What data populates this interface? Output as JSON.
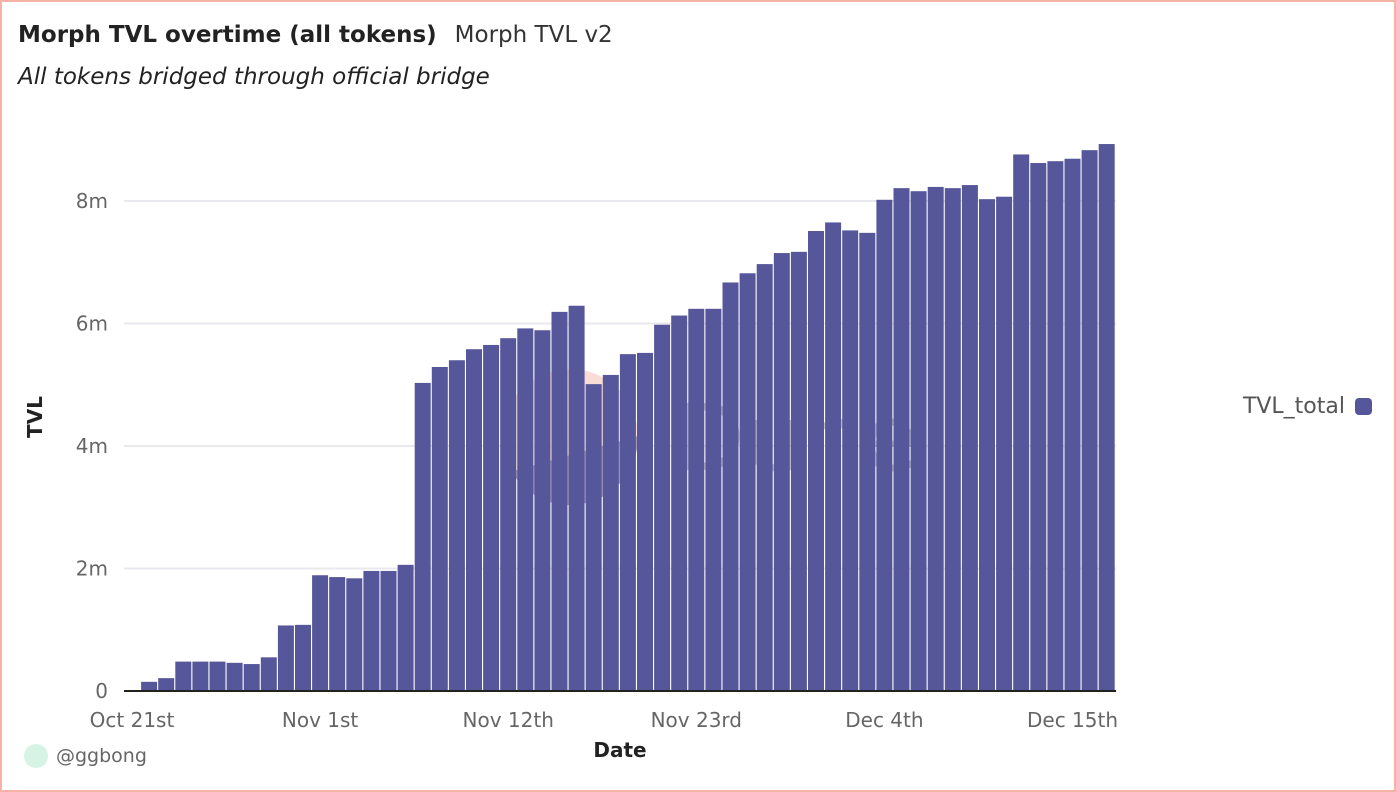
{
  "header": {
    "title": "Morph TVL overtime (all tokens)",
    "query_name": "Morph TVL v2",
    "description": "All tokens bridged through official bridge"
  },
  "footer": {
    "author": "@ggbong"
  },
  "watermark": {
    "text": "Dune"
  },
  "colors": {
    "bar": "#56579a",
    "border": "#f5b3a5",
    "grid": "#e8e8ee"
  },
  "chart_data": {
    "type": "bar",
    "title": "Morph TVL overtime (all tokens)",
    "xlabel": "Date",
    "ylabel": "TVL",
    "ylim": [
      0,
      9.2
    ],
    "y_unit": "millions",
    "grid": true,
    "legend_position": "right",
    "legend": [
      "TVL_total"
    ],
    "x_ticks": [
      "Oct 21st",
      "Nov 1st",
      "Nov 12th",
      "Nov 23rd",
      "Dec 4th",
      "Dec 15th"
    ],
    "y_ticks": [
      "0",
      "2m",
      "4m",
      "6m",
      "8m"
    ],
    "y_tick_values": [
      0,
      2,
      4,
      6,
      8
    ],
    "categories": [
      "Oct 22",
      "Oct 23",
      "Oct 24",
      "Oct 25",
      "Oct 26",
      "Oct 27",
      "Oct 28",
      "Oct 29",
      "Oct 30",
      "Oct 31",
      "Nov 1",
      "Nov 2",
      "Nov 3",
      "Nov 4",
      "Nov 5",
      "Nov 6",
      "Nov 7",
      "Nov 8",
      "Nov 9",
      "Nov 10",
      "Nov 11",
      "Nov 12",
      "Nov 13",
      "Nov 14",
      "Nov 15",
      "Nov 16",
      "Nov 17",
      "Nov 18",
      "Nov 19",
      "Nov 20",
      "Nov 21",
      "Nov 22",
      "Nov 23",
      "Nov 24",
      "Nov 25",
      "Nov 26",
      "Nov 27",
      "Nov 28",
      "Nov 29",
      "Nov 30",
      "Dec 1",
      "Dec 2",
      "Dec 3",
      "Dec 4",
      "Dec 5",
      "Dec 6",
      "Dec 7",
      "Dec 8",
      "Dec 9",
      "Dec 10",
      "Dec 11",
      "Dec 12",
      "Dec 13",
      "Dec 14",
      "Dec 15",
      "Dec 16",
      "Dec 17"
    ],
    "series": [
      {
        "name": "TVL_total",
        "values": [
          0.15,
          0.21,
          0.48,
          0.48,
          0.48,
          0.46,
          0.44,
          0.55,
          1.07,
          1.08,
          1.89,
          1.86,
          1.84,
          1.96,
          1.96,
          2.06,
          5.03,
          5.29,
          5.4,
          5.58,
          5.65,
          5.76,
          5.92,
          5.89,
          6.19,
          6.29,
          5.01,
          5.16,
          5.5,
          5.52,
          5.98,
          6.13,
          6.24,
          6.24,
          6.67,
          6.82,
          6.97,
          7.15,
          7.17,
          7.51,
          7.65,
          7.52,
          7.48,
          8.02,
          8.21,
          8.16,
          8.23,
          8.21,
          8.26,
          8.03,
          8.07,
          8.76,
          8.62,
          8.65,
          8.69,
          8.83,
          8.93
        ]
      }
    ]
  }
}
